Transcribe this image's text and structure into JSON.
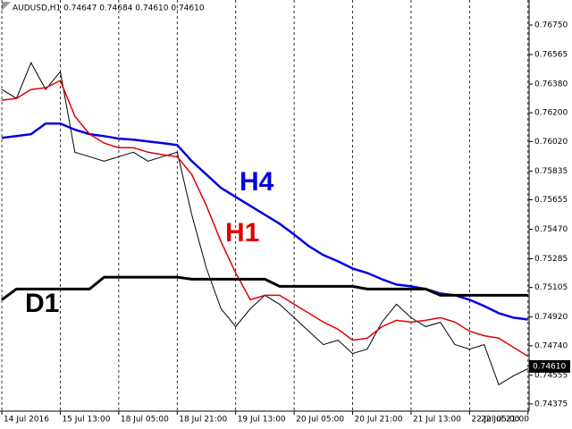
{
  "chart_data": {
    "type": "line",
    "title": "AUDUSD,H1  0.74647 0.74684 0.74610 0.74610",
    "x": [
      0,
      4,
      8,
      12,
      16,
      20,
      24,
      28,
      32,
      36,
      40,
      44,
      48,
      52,
      56,
      60,
      64,
      68,
      72,
      76,
      80,
      84,
      88,
      92,
      96,
      100,
      104,
      108,
      112,
      116,
      120,
      124,
      128,
      132,
      136,
      140,
      144
    ],
    "xlim": [
      -0.5,
      144.3
    ],
    "xticks": [
      {
        "value": 0,
        "label": "14 Jul 2016"
      },
      {
        "value": 16,
        "label": "15 Jul 13:00"
      },
      {
        "value": 32,
        "label": "18 Jul 05:00"
      },
      {
        "value": 48,
        "label": "18 Jul 21:00"
      },
      {
        "value": 64,
        "label": "19 Jul 13:00"
      },
      {
        "value": 80,
        "label": "20 Jul 05:00"
      },
      {
        "value": 96,
        "label": "20 Jul 21:00"
      },
      {
        "value": 112,
        "label": "21 Jul 13:00"
      },
      {
        "value": 128,
        "label": "22 Jul 05:00"
      },
      {
        "value": 144,
        "label": "22 Jul 21:00"
      }
    ],
    "ylim": [
      0.7433,
      0.76907
    ],
    "yticks": [
      {
        "value": 0.7675,
        "label": "0.76750"
      },
      {
        "value": 0.76565,
        "label": "0.76565"
      },
      {
        "value": 0.7638,
        "label": "0.76380"
      },
      {
        "value": 0.762,
        "label": "0.76200"
      },
      {
        "value": 0.7602,
        "label": "0.76020"
      },
      {
        "value": 0.75835,
        "label": "0.75835"
      },
      {
        "value": 0.75655,
        "label": "0.75655"
      },
      {
        "value": 0.7547,
        "label": "0.75470"
      },
      {
        "value": 0.75285,
        "label": "0.75285"
      },
      {
        "value": 0.75105,
        "label": "0.75105"
      },
      {
        "value": 0.7492,
        "label": "0.74920"
      },
      {
        "value": 0.7474,
        "label": "0.74740"
      },
      {
        "value": 0.74555,
        "label": "0.74555"
      },
      {
        "value": 0.74375,
        "label": "0.74375"
      }
    ],
    "grid": "x",
    "last_price": {
      "value": 0.7461,
      "label": "0.74610"
    },
    "series": [
      {
        "color": "#000000",
        "width": 1,
        "values": [
          0.76346,
          0.7629,
          0.76514,
          0.76346,
          0.76458,
          0.75953,
          0.75925,
          0.75897,
          0.75925,
          0.75953,
          0.75897,
          0.75925,
          0.75953,
          0.75561,
          0.75224,
          0.74972,
          0.7486,
          0.74972,
          0.75056,
          0.75,
          0.74916,
          0.74831,
          0.74747,
          0.74775,
          0.74691,
          0.74719,
          0.74887,
          0.75,
          0.74916,
          0.7486,
          0.74887,
          0.74747,
          0.74719,
          0.74747,
          0.74495,
          0.74551,
          0.74596
        ]
      },
      {
        "name": "H4",
        "color": "#0000e0",
        "width": 2.5,
        "values": [
          0.76043,
          0.76054,
          0.76066,
          0.76133,
          0.76133,
          0.76094,
          0.76066,
          0.76054,
          0.76038,
          0.76032,
          0.76021,
          0.7601,
          0.75998,
          0.75897,
          0.75813,
          0.75729,
          0.75673,
          0.75617,
          0.75561,
          0.75505,
          0.75437,
          0.75364,
          0.75308,
          0.75269,
          0.75224,
          0.75196,
          0.75157,
          0.75123,
          0.75112,
          0.75095,
          0.75067,
          0.75056,
          0.75028,
          0.74989,
          0.74944,
          0.74916,
          0.74904
        ]
      },
      {
        "name": "H1",
        "color": "#e00000",
        "width": 1.5,
        "values": [
          0.76279,
          0.7629,
          0.76346,
          0.76357,
          0.76402,
          0.76178,
          0.76066,
          0.7601,
          0.75981,
          0.75981,
          0.75953,
          0.75937,
          0.75925,
          0.75813,
          0.75617,
          0.75392,
          0.75196,
          0.75028,
          0.75056,
          0.75056,
          0.75,
          0.74944,
          0.74888,
          0.74843,
          0.74775,
          0.74787,
          0.74859,
          0.74899,
          0.74888,
          0.74899,
          0.74916,
          0.74888,
          0.74831,
          0.74803,
          0.74787,
          0.7473,
          0.74674
        ]
      },
      {
        "name": "D1",
        "color": "#000000",
        "width": 3,
        "values": [
          0.75028,
          0.75095,
          0.75095,
          0.75095,
          0.75095,
          0.75095,
          0.75095,
          0.7517,
          0.7517,
          0.7517,
          0.7517,
          0.7517,
          0.7517,
          0.75157,
          0.75157,
          0.75157,
          0.75157,
          0.75157,
          0.75157,
          0.75112,
          0.75112,
          0.75112,
          0.75112,
          0.75112,
          0.75112,
          0.75095,
          0.75095,
          0.75095,
          0.75095,
          0.75095,
          0.75056,
          0.75056,
          0.75056,
          0.75056,
          0.75056,
          0.75056,
          0.75056
        ]
      }
    ]
  }
}
